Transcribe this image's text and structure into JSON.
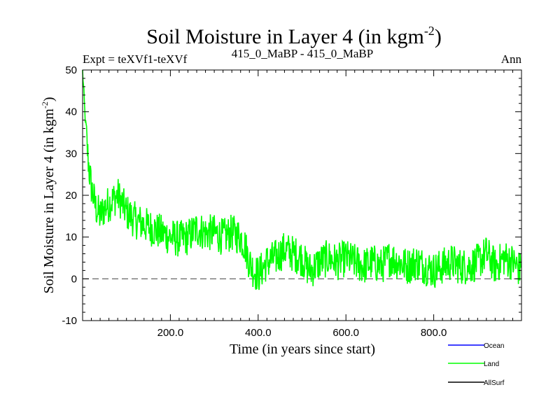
{
  "chart_data": {
    "type": "line",
    "title_main": "Soil Moisture in Layer 4 (in kgm",
    "title_sup": "-2",
    "title_close": ")",
    "subtitle_left": "Expt = teXVf1-teXVf",
    "subtitle_center": "415_0_MaBP - 415_0_MaBP",
    "subtitle_right": "Ann",
    "xlabel": "Time (in years since start)",
    "ylabel_main": "Soil Moisture in Layer 4 (in kgm",
    "ylabel_sup": "-2",
    "ylabel_close": ")",
    "xlim": [
      0,
      1000
    ],
    "ylim": [
      -10,
      50
    ],
    "xticks": [
      200,
      400,
      600,
      800
    ],
    "xtick_labels": [
      "200.0",
      "400.0",
      "600.0",
      "800.0"
    ],
    "yticks": [
      -10,
      0,
      10,
      20,
      30,
      40,
      50
    ],
    "ytick_labels": [
      "-10",
      "0",
      "10",
      "20",
      "30",
      "40",
      "50"
    ],
    "reference_line": 0,
    "legend": [
      {
        "name": "Ocean",
        "color": "#0000ff"
      },
      {
        "name": "Land",
        "color": "#00ff00"
      },
      {
        "name": "AllSurf",
        "color": "#000000"
      }
    ],
    "series": [
      {
        "name": "Land",
        "color": "#00ff00",
        "x": [
          0,
          5,
          10,
          15,
          20,
          30,
          40,
          50,
          60,
          70,
          80,
          90,
          100,
          120,
          140,
          160,
          180,
          200,
          220,
          240,
          260,
          280,
          300,
          320,
          340,
          360,
          370,
          380,
          390,
          400,
          420,
          440,
          460,
          480,
          500,
          510,
          520,
          540,
          560,
          580,
          600,
          620,
          640,
          660,
          680,
          700,
          720,
          740,
          760,
          780,
          800,
          820,
          840,
          860,
          880,
          900,
          920,
          940,
          960,
          980,
          998
        ],
        "values": [
          50,
          40,
          32,
          26,
          22,
          17,
          15,
          17,
          18,
          19,
          20,
          18,
          16,
          14,
          13,
          12,
          11,
          10,
          9.5,
          10,
          12,
          11,
          11,
          10,
          11,
          10,
          8,
          4,
          2,
          1,
          4,
          5,
          7,
          6,
          5,
          3,
          2,
          4,
          5,
          4,
          5,
          4,
          3,
          4,
          3,
          5,
          4,
          3,
          4,
          3,
          2,
          3,
          4,
          3,
          3,
          4,
          6,
          3,
          5,
          4,
          2
        ],
        "noise": 4.5
      },
      {
        "name": "Ocean",
        "color": "#0000ff",
        "x": [],
        "values": []
      },
      {
        "name": "AllSurf",
        "color": "#000000",
        "x": [],
        "values": []
      }
    ]
  }
}
